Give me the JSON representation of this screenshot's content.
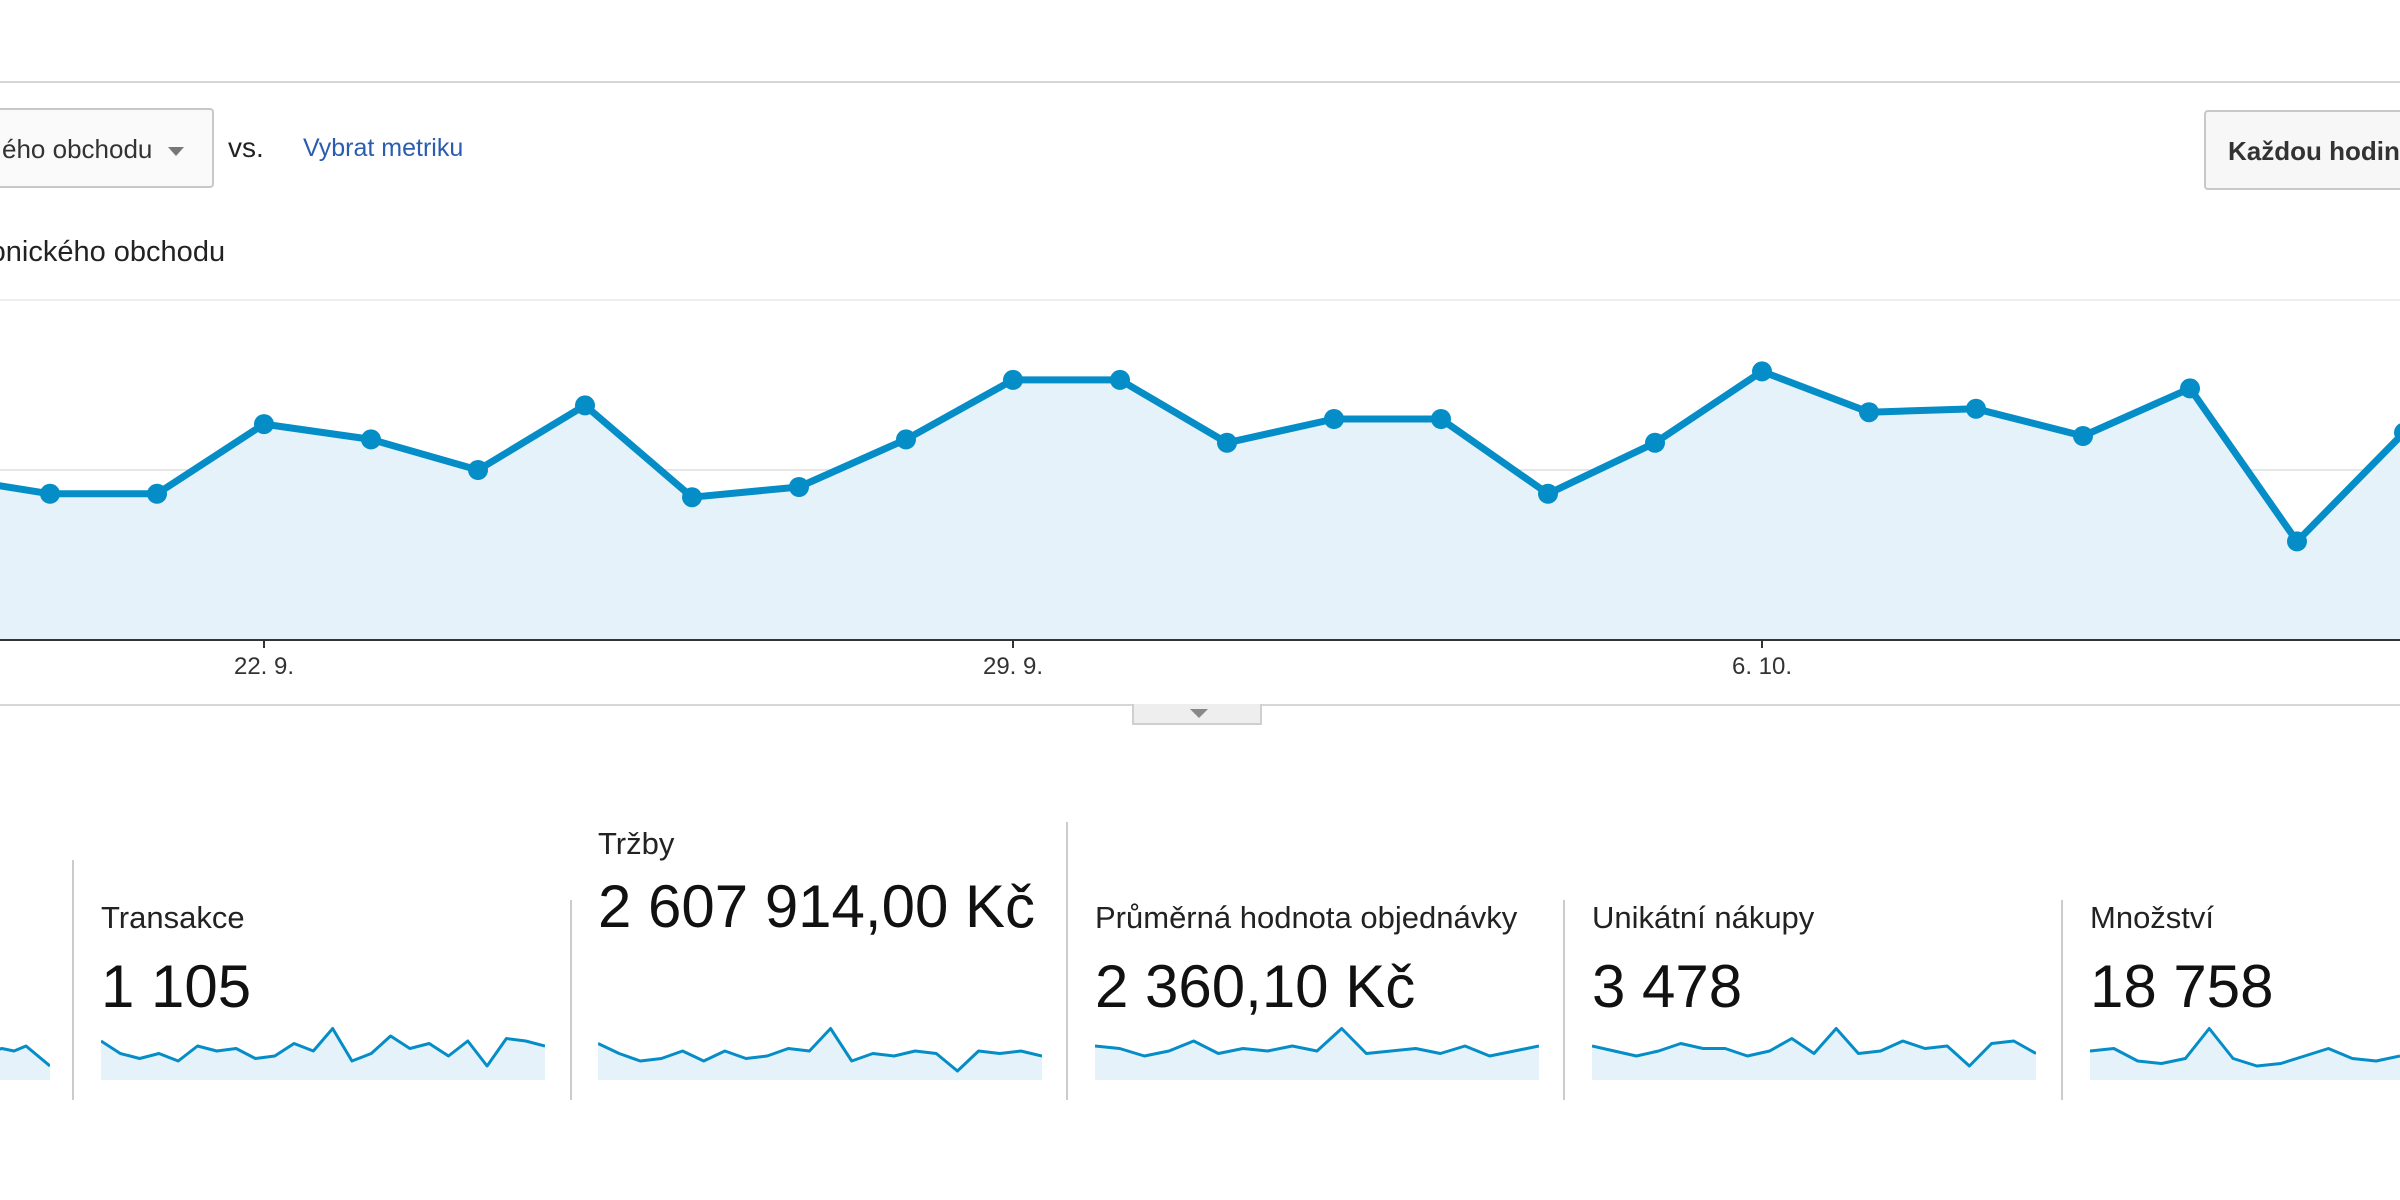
{
  "toolbar": {
    "metric_dropdown_label": "ého obchodu",
    "vs_label": "vs.",
    "select_metric_link": "Vybrat metriku",
    "interval_button": "Každou hodin"
  },
  "chart_data": {
    "type": "area",
    "series_label": "ronického obchodu",
    "x_tick_labels": [
      "22. 9.",
      "29. 9.",
      "6. 10."
    ],
    "y_relative": [
      0.48,
      0.43,
      0.43,
      0.635,
      0.59,
      0.5,
      0.69,
      0.42,
      0.45,
      0.59,
      0.765,
      0.765,
      0.58,
      0.65,
      0.65,
      0.43,
      0.58,
      0.79,
      0.67,
      0.68,
      0.6,
      0.74,
      0.29,
      0.61
    ],
    "grid": true,
    "colors": {
      "line": "#058dc7",
      "fill": "#e5f2f9"
    }
  },
  "metrics": [
    {
      "name": "",
      "value": "",
      "spark": [
        0.5,
        0.55,
        0.5,
        0.6,
        0.4,
        0.2
      ]
    },
    {
      "name": "Transakce",
      "value": "1 105",
      "spark": [
        0.7,
        0.45,
        0.35,
        0.45,
        0.3,
        0.6,
        0.5,
        0.55,
        0.35,
        0.4,
        0.65,
        0.5,
        0.95,
        0.3,
        0.45,
        0.8,
        0.55,
        0.65,
        0.4,
        0.7,
        0.2,
        0.75,
        0.7,
        0.6
      ]
    },
    {
      "name": "Tržby",
      "value": "2 607 914,00 Kč",
      "spark": [
        0.65,
        0.45,
        0.3,
        0.35,
        0.5,
        0.3,
        0.5,
        0.35,
        0.4,
        0.55,
        0.5,
        0.95,
        0.3,
        0.45,
        0.4,
        0.5,
        0.45,
        0.1,
        0.5,
        0.45,
        0.5,
        0.4
      ]
    },
    {
      "name": "Průměrná hodnota objednávky",
      "value": "2 360,10 Kč",
      "spark": [
        0.6,
        0.55,
        0.4,
        0.5,
        0.7,
        0.45,
        0.55,
        0.5,
        0.6,
        0.5,
        0.95,
        0.45,
        0.5,
        0.55,
        0.45,
        0.6,
        0.4,
        0.5,
        0.6
      ]
    },
    {
      "name": "Unikátní nákupy",
      "value": "3 478",
      "spark": [
        0.6,
        0.5,
        0.4,
        0.5,
        0.65,
        0.55,
        0.55,
        0.4,
        0.5,
        0.75,
        0.45,
        0.95,
        0.45,
        0.5,
        0.7,
        0.55,
        0.6,
        0.2,
        0.65,
        0.7,
        0.45
      ]
    },
    {
      "name": "Množství",
      "value": "18 758",
      "spark": [
        0.5,
        0.55,
        0.3,
        0.25,
        0.35,
        0.95,
        0.35,
        0.2,
        0.25,
        0.4,
        0.55,
        0.35,
        0.3,
        0.4
      ]
    }
  ]
}
